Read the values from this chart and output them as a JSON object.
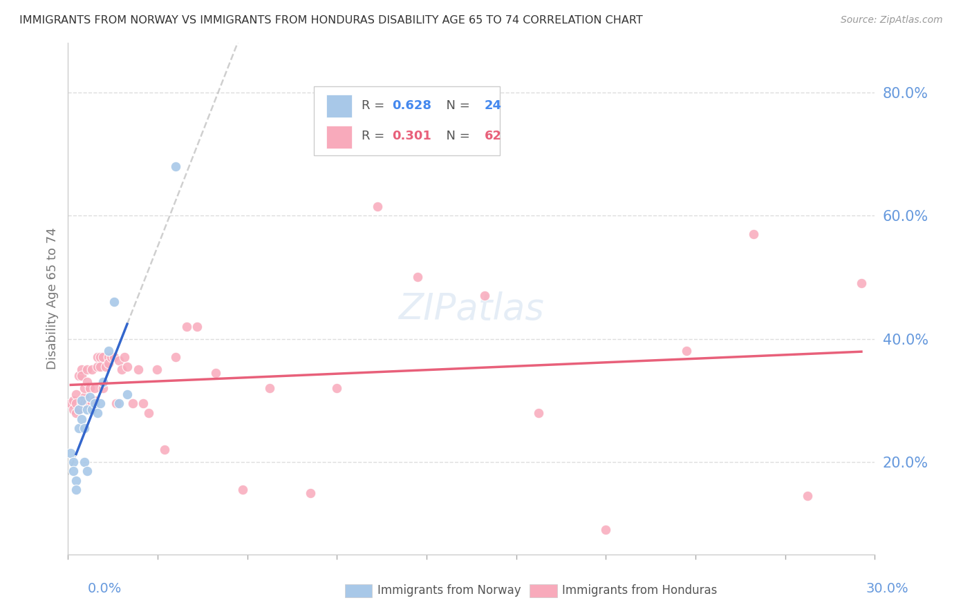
{
  "title": "IMMIGRANTS FROM NORWAY VS IMMIGRANTS FROM HONDURAS DISABILITY AGE 65 TO 74 CORRELATION CHART",
  "source": "Source: ZipAtlas.com",
  "ylabel": "Disability Age 65 to 74",
  "ytick_vals": [
    0.2,
    0.4,
    0.6,
    0.8
  ],
  "ytick_labels": [
    "20.0%",
    "40.0%",
    "60.0%",
    "80.0%"
  ],
  "xlim": [
    0.0,
    0.3
  ],
  "ylim": [
    0.05,
    0.88
  ],
  "norway_R": 0.628,
  "norway_N": 24,
  "honduras_R": 0.301,
  "honduras_N": 62,
  "norway_color": "#a8c8e8",
  "honduras_color": "#f8aabb",
  "norway_line_color": "#3366cc",
  "honduras_line_color": "#e8607a",
  "dashed_line_color": "#bbbbbb",
  "background_color": "#ffffff",
  "grid_color": "#dddddd",
  "axis_label_color": "#6699dd",
  "legend_norway_color": "#4488ee",
  "legend_honduras_color": "#e8607a",
  "norway_x": [
    0.001,
    0.002,
    0.002,
    0.003,
    0.003,
    0.004,
    0.004,
    0.005,
    0.005,
    0.006,
    0.006,
    0.007,
    0.007,
    0.008,
    0.009,
    0.01,
    0.011,
    0.012,
    0.013,
    0.015,
    0.017,
    0.019,
    0.022,
    0.04
  ],
  "norway_y": [
    0.215,
    0.2,
    0.185,
    0.17,
    0.155,
    0.285,
    0.255,
    0.3,
    0.27,
    0.255,
    0.2,
    0.185,
    0.285,
    0.305,
    0.285,
    0.295,
    0.28,
    0.295,
    0.33,
    0.38,
    0.46,
    0.295,
    0.31,
    0.68
  ],
  "honduras_x": [
    0.001,
    0.002,
    0.002,
    0.003,
    0.003,
    0.003,
    0.004,
    0.004,
    0.005,
    0.005,
    0.005,
    0.006,
    0.006,
    0.006,
    0.007,
    0.007,
    0.007,
    0.008,
    0.008,
    0.009,
    0.009,
    0.01,
    0.01,
    0.011,
    0.011,
    0.012,
    0.012,
    0.013,
    0.013,
    0.014,
    0.015,
    0.015,
    0.016,
    0.017,
    0.018,
    0.019,
    0.02,
    0.021,
    0.022,
    0.024,
    0.026,
    0.028,
    0.03,
    0.033,
    0.036,
    0.04,
    0.044,
    0.048,
    0.055,
    0.065,
    0.075,
    0.09,
    0.1,
    0.115,
    0.13,
    0.155,
    0.175,
    0.2,
    0.23,
    0.255,
    0.275,
    0.295
  ],
  "honduras_y": [
    0.295,
    0.3,
    0.285,
    0.31,
    0.295,
    0.28,
    0.285,
    0.34,
    0.35,
    0.295,
    0.34,
    0.305,
    0.295,
    0.32,
    0.295,
    0.33,
    0.35,
    0.295,
    0.32,
    0.295,
    0.35,
    0.3,
    0.32,
    0.37,
    0.355,
    0.37,
    0.355,
    0.37,
    0.32,
    0.355,
    0.37,
    0.36,
    0.37,
    0.37,
    0.295,
    0.365,
    0.35,
    0.37,
    0.355,
    0.295,
    0.35,
    0.295,
    0.28,
    0.35,
    0.22,
    0.37,
    0.42,
    0.42,
    0.345,
    0.155,
    0.32,
    0.15,
    0.32,
    0.615,
    0.5,
    0.47,
    0.28,
    0.09,
    0.38,
    0.57,
    0.145,
    0.49
  ]
}
